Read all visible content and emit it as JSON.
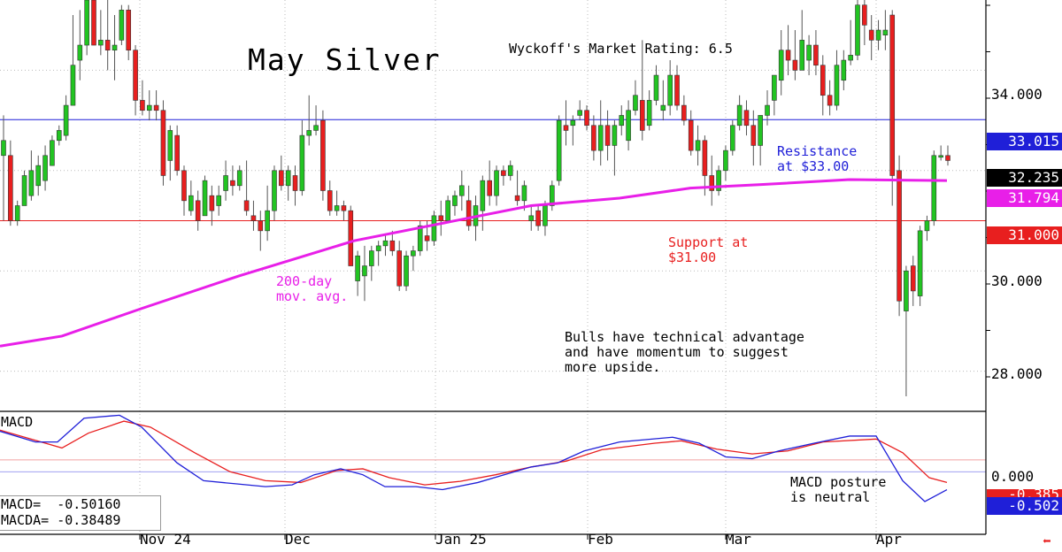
{
  "title": "May Silver",
  "rating": "Wyckoff's Market Rating: 6.5",
  "annotations": {
    "resistance": "Resistance\nat $33.00",
    "support": "Support at\n$31.00",
    "ma": "200-day\nmov. avg.",
    "bulls": "Bulls have technical advantage\nand have momentum to suggest\nmore upside.",
    "macd_posture": "MACD posture\nis neutral"
  },
  "price_axis": [
    "34.000",
    "30.000",
    "28.000"
  ],
  "tags": {
    "resistance": "33.015",
    "last": "32.235",
    "ma": "31.794",
    "support": "31.000",
    "macd_zero": "0.000",
    "macda": "-0.385",
    "macd": "-0.502"
  },
  "macd_panel": {
    "title": "MACD",
    "macd_line": "MACD=  -0.50160",
    "macda_line": "MACDA= -0.38489"
  },
  "x_axis": [
    "Nov 24",
    "Dec",
    "Jan 25",
    "Feb",
    "Mar",
    "Apr"
  ],
  "colors": {
    "bull": "#22c422",
    "bear": "#e81f1f",
    "ma": "#e81fe8",
    "resistance": "#1f1fd8",
    "support": "#e81f1f",
    "macd": "#1f1fd8",
    "macda": "#e81f1f"
  },
  "chart_data": {
    "type": "candlestick",
    "levels": {
      "resistance": 33.015,
      "support": 31.0,
      "ma200_last": 31.794,
      "last": 32.235
    },
    "ylim": [
      27.2,
      35.4
    ],
    "candles": [
      [
        32.3,
        33.1,
        31.0,
        32.6
      ],
      [
        32.3,
        32.6,
        30.9,
        31.0
      ],
      [
        31.0,
        31.4,
        30.9,
        31.3
      ],
      [
        31.3,
        32.0,
        31.3,
        31.9
      ],
      [
        31.5,
        32.4,
        31.4,
        32.0
      ],
      [
        31.7,
        32.3,
        31.5,
        32.1
      ],
      [
        31.8,
        32.5,
        31.6,
        32.3
      ],
      [
        32.1,
        32.7,
        32.1,
        32.6
      ],
      [
        32.6,
        32.9,
        32.5,
        32.8
      ],
      [
        32.7,
        33.5,
        32.6,
        33.3
      ],
      [
        33.3,
        35.1,
        33.3,
        34.1
      ],
      [
        34.2,
        35.2,
        33.8,
        34.5
      ],
      [
        34.5,
        35.5,
        34.3,
        35.4
      ],
      [
        35.4,
        35.5,
        34.5,
        34.5
      ],
      [
        34.5,
        35.2,
        34.3,
        34.6
      ],
      [
        34.6,
        35.4,
        34.0,
        34.4
      ],
      [
        34.4,
        35.1,
        33.8,
        34.5
      ],
      [
        34.6,
        35.3,
        34.5,
        35.2
      ],
      [
        35.2,
        35.3,
        34.2,
        34.4
      ],
      [
        34.4,
        34.5,
        33.1,
        33.4
      ],
      [
        33.4,
        33.8,
        33.1,
        33.2
      ],
      [
        33.2,
        33.6,
        33.0,
        33.3
      ],
      [
        33.3,
        33.6,
        33.0,
        33.2
      ],
      [
        33.2,
        33.4,
        31.7,
        31.9
      ],
      [
        32.2,
        32.9,
        31.8,
        32.8
      ],
      [
        32.7,
        32.9,
        31.9,
        32.0
      ],
      [
        32.0,
        32.1,
        31.1,
        31.4
      ],
      [
        31.2,
        31.8,
        31.1,
        31.5
      ],
      [
        31.4,
        31.6,
        30.8,
        31.0
      ],
      [
        31.1,
        31.9,
        31.1,
        31.8
      ],
      [
        31.5,
        31.7,
        30.9,
        31.2
      ],
      [
        31.3,
        31.7,
        31.1,
        31.5
      ],
      [
        31.6,
        32.2,
        31.4,
        31.9
      ],
      [
        31.8,
        32.1,
        31.5,
        31.7
      ],
      [
        31.7,
        32.1,
        31.6,
        32.0
      ],
      [
        31.4,
        32.2,
        31.1,
        31.2
      ],
      [
        31.1,
        31.4,
        30.8,
        31.0
      ],
      [
        31.0,
        31.2,
        30.4,
        30.8
      ],
      [
        30.8,
        31.7,
        30.6,
        31.2
      ],
      [
        31.2,
        32.1,
        31.0,
        32.0
      ],
      [
        32.0,
        32.3,
        31.6,
        31.7
      ],
      [
        31.7,
        32.1,
        31.4,
        32.0
      ],
      [
        31.9,
        32.1,
        31.3,
        31.6
      ],
      [
        31.6,
        33.0,
        31.5,
        32.7
      ],
      [
        32.7,
        33.5,
        32.5,
        32.8
      ],
      [
        32.8,
        33.3,
        32.7,
        32.9
      ],
      [
        33.0,
        33.2,
        31.4,
        31.6
      ],
      [
        31.6,
        31.8,
        31.1,
        31.2
      ],
      [
        31.2,
        31.6,
        31.1,
        31.3
      ],
      [
        31.3,
        31.4,
        31.0,
        31.2
      ],
      [
        31.2,
        31.3,
        30.1,
        30.1
      ],
      [
        29.8,
        30.4,
        29.5,
        30.3
      ],
      [
        29.9,
        30.5,
        29.4,
        30.1
      ],
      [
        30.1,
        30.5,
        29.8,
        30.4
      ],
      [
        30.4,
        30.6,
        30.1,
        30.5
      ],
      [
        30.5,
        30.7,
        30.3,
        30.6
      ],
      [
        30.6,
        30.8,
        30.3,
        30.4
      ],
      [
        30.4,
        30.6,
        29.6,
        29.7
      ],
      [
        29.7,
        30.4,
        29.6,
        30.3
      ],
      [
        30.3,
        30.5,
        30.0,
        30.4
      ],
      [
        30.4,
        31.0,
        30.3,
        30.9
      ],
      [
        30.7,
        31.0,
        30.4,
        30.6
      ],
      [
        30.6,
        31.2,
        30.5,
        31.1
      ],
      [
        31.1,
        31.4,
        30.7,
        31.0
      ],
      [
        31.0,
        31.5,
        31.0,
        31.4
      ],
      [
        31.3,
        31.6,
        31.1,
        31.5
      ],
      [
        31.5,
        32.0,
        31.2,
        31.7
      ],
      [
        31.4,
        31.7,
        30.8,
        30.9
      ],
      [
        30.9,
        31.5,
        30.6,
        31.3
      ],
      [
        31.2,
        31.9,
        30.8,
        31.8
      ],
      [
        31.8,
        32.2,
        31.3,
        31.5
      ],
      [
        31.5,
        32.1,
        31.3,
        32.0
      ],
      [
        32.0,
        32.1,
        31.7,
        31.9
      ],
      [
        31.9,
        32.2,
        31.8,
        32.1
      ],
      [
        31.5,
        32.0,
        31.3,
        31.4
      ],
      [
        31.4,
        31.8,
        31.2,
        31.7
      ],
      [
        31.0,
        31.3,
        30.8,
        31.1
      ],
      [
        31.2,
        31.3,
        30.8,
        30.9
      ],
      [
        30.9,
        31.4,
        30.7,
        31.3
      ],
      [
        31.3,
        31.8,
        31.2,
        31.7
      ],
      [
        31.8,
        33.1,
        31.7,
        33.0
      ],
      [
        32.9,
        33.4,
        32.5,
        32.8
      ],
      [
        32.9,
        33.1,
        32.5,
        33.0
      ],
      [
        33.1,
        33.4,
        33.0,
        33.2
      ],
      [
        33.2,
        33.3,
        32.8,
        32.9
      ],
      [
        32.9,
        33.1,
        32.2,
        32.4
      ],
      [
        32.4,
        33.4,
        32.1,
        32.9
      ],
      [
        32.9,
        33.2,
        32.2,
        32.5
      ],
      [
        32.5,
        33.0,
        31.9,
        32.9
      ],
      [
        32.9,
        33.3,
        32.7,
        33.1
      ],
      [
        32.6,
        33.4,
        32.4,
        33.2
      ],
      [
        33.2,
        33.8,
        33.1,
        33.5
      ],
      [
        33.4,
        34.6,
        32.6,
        32.8
      ],
      [
        32.9,
        33.6,
        32.8,
        33.4
      ],
      [
        33.4,
        34.1,
        33.3,
        33.9
      ],
      [
        33.2,
        33.8,
        33.0,
        33.3
      ],
      [
        33.3,
        34.2,
        33.1,
        33.9
      ],
      [
        33.9,
        34.1,
        33.2,
        33.3
      ],
      [
        33.3,
        33.5,
        32.9,
        33.0
      ],
      [
        33.0,
        33.2,
        32.3,
        32.4
      ],
      [
        32.4,
        32.9,
        32.1,
        32.6
      ],
      [
        32.6,
        32.7,
        31.5,
        31.9
      ],
      [
        31.9,
        32.3,
        31.3,
        31.6
      ],
      [
        31.6,
        32.1,
        31.5,
        32.0
      ],
      [
        32.0,
        32.5,
        31.8,
        32.4
      ],
      [
        32.4,
        33.0,
        32.3,
        32.9
      ],
      [
        32.9,
        33.5,
        32.8,
        33.3
      ],
      [
        33.2,
        33.4,
        32.7,
        32.9
      ],
      [
        32.9,
        33.2,
        32.1,
        32.5
      ],
      [
        32.5,
        33.1,
        32.1,
        33.1
      ],
      [
        33.1,
        33.6,
        32.9,
        33.3
      ],
      [
        33.4,
        33.9,
        33.1,
        33.9
      ],
      [
        33.8,
        34.8,
        33.5,
        34.4
      ],
      [
        34.4,
        34.9,
        33.9,
        34.2
      ],
      [
        34.2,
        34.8,
        33.8,
        34.0
      ],
      [
        34.0,
        35.2,
        34.0,
        34.6
      ],
      [
        34.2,
        34.7,
        33.9,
        34.5
      ],
      [
        34.5,
        34.8,
        33.9,
        34.1
      ],
      [
        34.1,
        34.3,
        33.1,
        33.5
      ],
      [
        33.5,
        33.8,
        33.1,
        33.3
      ],
      [
        33.3,
        34.4,
        33.2,
        34.1
      ],
      [
        33.8,
        34.4,
        33.6,
        34.2
      ],
      [
        34.2,
        35.0,
        34.1,
        34.3
      ],
      [
        34.3,
        35.4,
        34.2,
        35.3
      ],
      [
        35.3,
        35.4,
        34.5,
        34.9
      ],
      [
        34.8,
        35.1,
        34.2,
        34.6
      ],
      [
        34.6,
        35.0,
        34.4,
        34.8
      ],
      [
        34.7,
        35.2,
        34.4,
        34.8
      ],
      [
        35.1,
        35.2,
        31.3,
        31.9
      ],
      [
        32.0,
        32.3,
        29.1,
        29.4
      ],
      [
        29.2,
        30.1,
        27.5,
        30.0
      ],
      [
        30.1,
        30.3,
        29.3,
        29.6
      ],
      [
        29.5,
        30.9,
        29.3,
        30.8
      ],
      [
        30.8,
        31.1,
        30.6,
        31.0
      ],
      [
        31.0,
        32.4,
        30.9,
        32.3
      ],
      [
        32.3,
        32.5,
        32.2,
        32.3
      ],
      [
        32.3,
        32.5,
        32.1,
        32.2
      ]
    ],
    "ma200": [
      [
        0,
        28.5
      ],
      [
        70,
        28.7
      ],
      [
        160,
        29.25
      ],
      [
        270,
        29.9
      ],
      [
        400,
        30.6
      ],
      [
        500,
        30.95
      ],
      [
        600,
        31.3
      ],
      [
        700,
        31.45
      ],
      [
        780,
        31.65
      ],
      [
        860,
        31.72
      ],
      [
        960,
        31.82
      ],
      [
        1070,
        31.8
      ]
    ],
    "macd_panel": {
      "ylim": [
        -1.25,
        0.8
      ],
      "macd": [
        [
          0,
          0.48
        ],
        [
          40,
          0.3
        ],
        [
          65,
          0.3
        ],
        [
          95,
          0.7
        ],
        [
          135,
          0.75
        ],
        [
          160,
          0.55
        ],
        [
          200,
          -0.05
        ],
        [
          230,
          -0.35
        ],
        [
          265,
          -0.4
        ],
        [
          300,
          -0.45
        ],
        [
          330,
          -0.42
        ],
        [
          355,
          -0.25
        ],
        [
          385,
          -0.15
        ],
        [
          410,
          -0.25
        ],
        [
          435,
          -0.45
        ],
        [
          470,
          -0.45
        ],
        [
          500,
          -0.5
        ],
        [
          540,
          -0.38
        ],
        [
          570,
          -0.25
        ],
        [
          600,
          -0.12
        ],
        [
          630,
          -0.05
        ],
        [
          660,
          0.15
        ],
        [
          700,
          0.3
        ],
        [
          760,
          0.38
        ],
        [
          790,
          0.28
        ],
        [
          820,
          0.05
        ],
        [
          850,
          0.02
        ],
        [
          880,
          0.15
        ],
        [
          920,
          0.28
        ],
        [
          960,
          0.4
        ],
        [
          990,
          0.4
        ],
        [
          1020,
          -0.35
        ],
        [
          1045,
          -0.7
        ],
        [
          1070,
          -0.5
        ]
      ],
      "macda": [
        [
          0,
          0.5
        ],
        [
          70,
          0.2
        ],
        [
          100,
          0.45
        ],
        [
          140,
          0.65
        ],
        [
          170,
          0.55
        ],
        [
          220,
          0.12
        ],
        [
          260,
          -0.2
        ],
        [
          300,
          -0.35
        ],
        [
          340,
          -0.38
        ],
        [
          380,
          -0.18
        ],
        [
          410,
          -0.15
        ],
        [
          440,
          -0.3
        ],
        [
          480,
          -0.42
        ],
        [
          520,
          -0.36
        ],
        [
          560,
          -0.25
        ],
        [
          600,
          -0.12
        ],
        [
          640,
          -0.02
        ],
        [
          680,
          0.17
        ],
        [
          740,
          0.28
        ],
        [
          770,
          0.32
        ],
        [
          810,
          0.18
        ],
        [
          850,
          0.1
        ],
        [
          890,
          0.15
        ],
        [
          930,
          0.3
        ],
        [
          990,
          0.35
        ],
        [
          1020,
          0.12
        ],
        [
          1050,
          -0.3
        ],
        [
          1070,
          -0.38
        ]
      ],
      "zero": 0.0
    }
  }
}
